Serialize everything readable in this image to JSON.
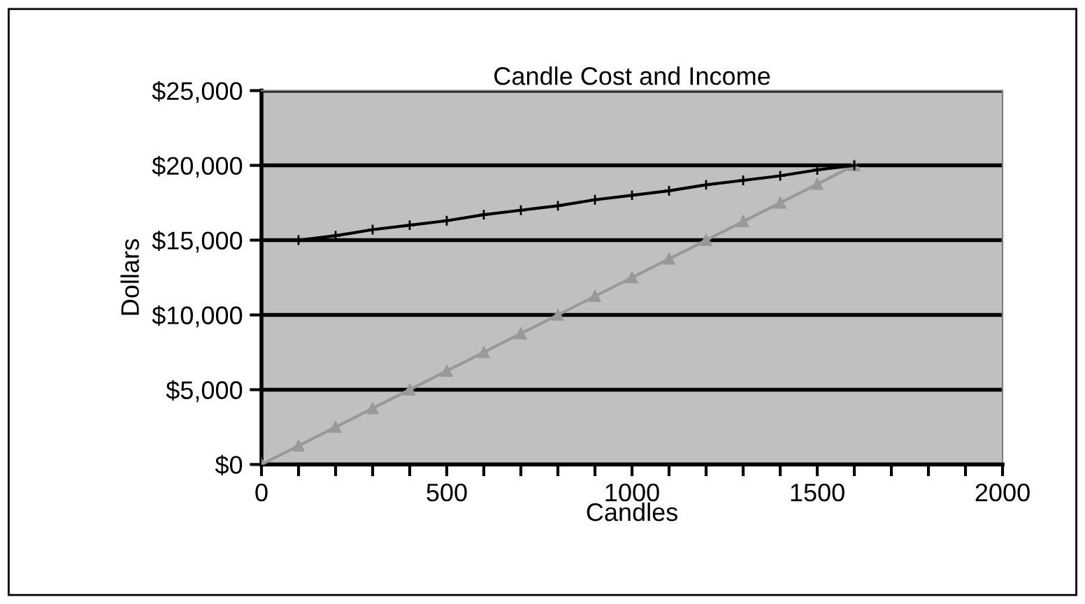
{
  "chart_data": {
    "type": "line",
    "title": "Candle Cost and Income",
    "xlabel": "Candles",
    "ylabel": "Dollars",
    "series": [
      {
        "color": "#000000",
        "marker": "cross",
        "x": [
          100,
          200,
          300,
          400,
          500,
          600,
          700,
          800,
          900,
          1000,
          1100,
          1200,
          1300,
          1400,
          1500,
          1600
        ],
        "values": [
          15000,
          15300,
          15700,
          16000,
          16300,
          16700,
          17000,
          17300,
          17700,
          18000,
          18300,
          18700,
          19000,
          19300,
          19700,
          20000
        ]
      },
      {
        "color": "#999999",
        "marker": "triangle",
        "x": [
          0,
          100,
          200,
          300,
          400,
          500,
          600,
          700,
          800,
          900,
          1000,
          1100,
          1200,
          1300,
          1400,
          1500,
          1600
        ],
        "values": [
          0,
          1250,
          2500,
          3750,
          5000,
          6250,
          7500,
          8750,
          10000,
          11250,
          12500,
          13750,
          15000,
          16250,
          17500,
          18750,
          20000
        ]
      }
    ],
    "xlim": [
      0,
      2000
    ],
    "xticks": [
      0,
      {
        "value": 100,
        "label": null
      },
      {
        "value": 200,
        "label": null
      },
      {
        "value": 300,
        "label": null
      },
      {
        "value": 400,
        "label": null
      },
      500,
      {
        "value": 600,
        "label": null
      },
      {
        "value": 700,
        "label": null
      },
      {
        "value": 800,
        "label": null
      },
      {
        "value": 900,
        "label": null
      },
      1000,
      {
        "value": 1100,
        "label": null
      },
      {
        "value": 1200,
        "label": null
      },
      {
        "value": 1300,
        "label": null
      },
      {
        "value": 1400,
        "label": null
      },
      1500,
      {
        "value": 1600,
        "label": null
      },
      {
        "value": 1700,
        "label": null
      },
      {
        "value": 1800,
        "label": null
      },
      {
        "value": 1900,
        "label": null
      },
      2000
    ],
    "ylim": [
      0,
      25000
    ],
    "yticks": [
      {
        "value": 0,
        "label": "$0"
      },
      {
        "value": 5000,
        "label": "$5,000"
      },
      {
        "value": 10000,
        "label": "$10,000"
      },
      {
        "value": 15000,
        "label": "$15,000"
      },
      {
        "value": 20000,
        "label": "$20,000"
      },
      {
        "value": 25000,
        "label": "$25,000"
      }
    ],
    "grid": "y",
    "legend": false
  }
}
